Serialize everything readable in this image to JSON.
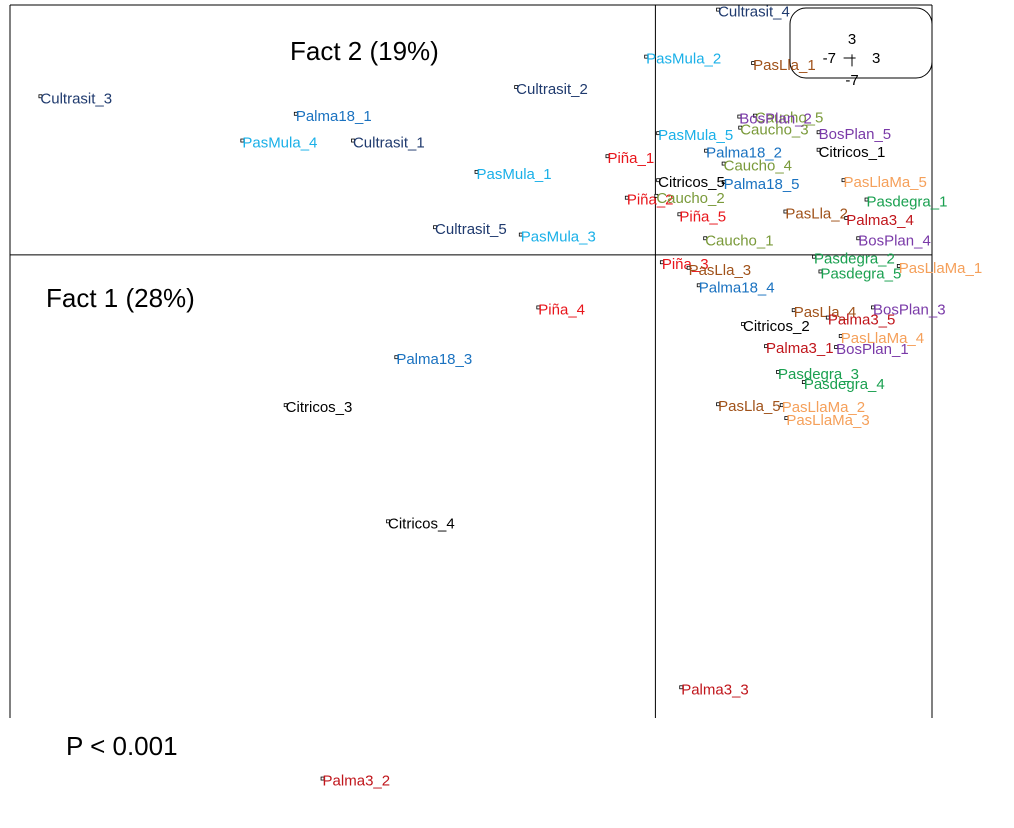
{
  "chart_data": {
    "type": "scatter",
    "annotations": [
      "Fact 2 (19%)",
      "Fact 1 (28%)",
      "P < 0.001"
    ],
    "xlim": [
      -7,
      3
    ],
    "ylim": [
      -6.2,
      2.71
    ],
    "xticks": [
      -7,
      3
    ],
    "yticks": [
      -7,
      3
    ],
    "series": [
      {
        "color": "#1f3a6e",
        "labels": [
          "Cultrasit_1",
          "Cultrasit_2",
          "Cultrasit_3",
          "Cultrasit_4",
          "Cultrasit_5"
        ],
        "x": [
          -3.28,
          -1.51,
          -6.67,
          0.68,
          -2.39
        ],
        "y": [
          1.24,
          1.82,
          1.72,
          2.66,
          0.3
        ]
      },
      {
        "color": "#1ab0e8",
        "labels": [
          "PasMula_1",
          "PasMula_2",
          "PasMula_3",
          "PasMula_4",
          "PasMula_5"
        ],
        "x": [
          -1.94,
          -0.1,
          -1.46,
          -4.48,
          0.03
        ],
        "y": [
          0.9,
          2.15,
          0.22,
          1.24,
          1.32
        ]
      },
      {
        "color": "#1a72c0",
        "labels": [
          "Palma18_1",
          "Palma18_2",
          "Palma18_3",
          "Palma18_4",
          "Palma18_5"
        ],
        "x": [
          -3.9,
          0.55,
          -2.81,
          0.47,
          0.74
        ],
        "y": [
          1.53,
          1.13,
          -1.11,
          -0.33,
          0.79
        ]
      },
      {
        "color": "#e8151b",
        "labels": [
          "Piña_1",
          "Piña_2",
          "Piña_3",
          "Piña_4",
          "Piña_5"
        ],
        "x": [
          -0.52,
          -0.31,
          0.07,
          -1.27,
          0.26
        ],
        "y": [
          1.07,
          0.62,
          -0.08,
          -0.57,
          0.44
        ]
      },
      {
        "color": "#000000",
        "labels": [
          "Citricos_1",
          "Citricos_2",
          "Citricos_3",
          "Citricos_4",
          "Citricos_5"
        ],
        "x": [
          1.77,
          0.95,
          -4.01,
          -2.9,
          0.03
        ],
        "y": [
          1.14,
          -0.75,
          -1.63,
          -2.89,
          0.81
        ]
      },
      {
        "color": "#7a9a3a",
        "labels": [
          "Caucho_1",
          "Caucho_2",
          "Caucho_3",
          "Caucho_4",
          "Caucho_5"
        ],
        "x": [
          0.54,
          0.01,
          0.92,
          0.74,
          1.08
        ],
        "y": [
          0.18,
          0.64,
          1.38,
          0.99,
          1.51
        ]
      },
      {
        "color": "#a0521a",
        "labels": [
          "PasLla_1",
          "PasLla_2",
          "PasLla_3",
          "PasLla_4",
          "PasLla_5"
        ],
        "x": [
          1.06,
          1.41,
          0.36,
          1.5,
          0.68
        ],
        "y": [
          2.08,
          0.47,
          -0.14,
          -0.6,
          -1.62
        ]
      },
      {
        "color": "#7a3aa8",
        "labels": [
          "BosPlan_1",
          "BosPlan_2",
          "BosPlan_3",
          "BosPlan_4",
          "BosPlan_5"
        ],
        "x": [
          1.96,
          0.91,
          2.36,
          2.2,
          1.77
        ],
        "y": [
          -1.0,
          1.5,
          -0.57,
          0.18,
          1.33
        ]
      },
      {
        "color": "#c0151b",
        "labels": [
          "Palma3_1",
          "Palma3_2",
          "Palma3_3",
          "Palma3_4",
          "Palma3_5"
        ],
        "x": [
          1.2,
          -3.61,
          0.28,
          2.07,
          1.87
        ],
        "y": [
          -0.99,
          -5.68,
          -4.69,
          0.4,
          -0.68
        ]
      },
      {
        "color": "#1aa050",
        "labels": [
          "Pasdegra_1",
          "Pasdegra_2",
          "Pasdegra_3",
          "Pasdegra_4",
          "Pasdegra_5"
        ],
        "x": [
          2.29,
          1.72,
          1.33,
          1.61,
          1.79
        ],
        "y": [
          0.6,
          -0.02,
          -1.27,
          -1.38,
          -0.18
        ]
      },
      {
        "color": "#f5a05a",
        "labels": [
          "PasLlaMa_1",
          "PasLlaMa_2",
          "PasLlaMa_3",
          "PasLlaMa_4",
          "PasLlaMa_5"
        ],
        "x": [
          2.64,
          1.37,
          1.42,
          2.01,
          2.04
        ],
        "y": [
          -0.12,
          -1.63,
          -1.77,
          -0.88,
          0.81
        ]
      }
    ]
  }
}
